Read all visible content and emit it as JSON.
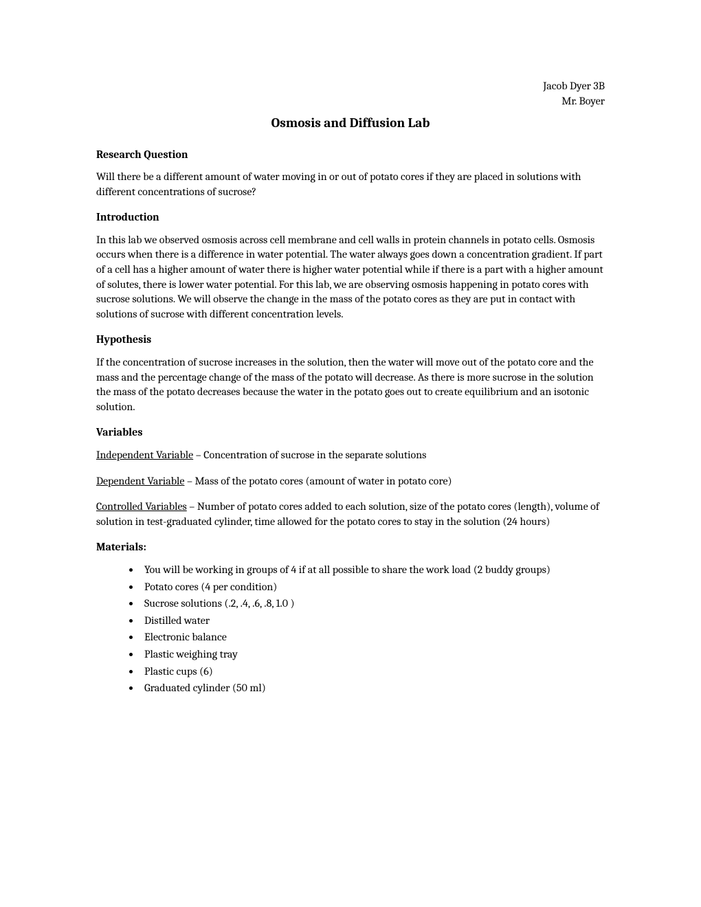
{
  "header": {
    "student": "Jacob Dyer 3B",
    "teacher": "Mr. Boyer"
  },
  "title": "Osmosis and Diffusion Lab",
  "sections": {
    "research_question": {
      "heading": "Research Question",
      "body": "Will there be a different amount of water moving in or out of potato cores if they are placed in solutions with different concentrations of sucrose?"
    },
    "introduction": {
      "heading": "Introduction",
      "body": "In this lab we observed osmosis across cell membrane and cell walls in protein channels in potato cells.  Osmosis occurs when there is a difference in water potential.  The water always goes down a concentration gradient.  If part of a cell has a higher amount of water there is higher water potential while if there is a part with a higher amount of solutes, there is lower water potential.  For this lab, we are observing osmosis happening in potato cores with sucrose solutions.  We will observe the change in the mass of the potato cores as they are put in contact with solutions of sucrose with different concentration levels."
    },
    "hypothesis": {
      "heading": "Hypothesis",
      "body": "If the concentration of sucrose increases in the solution, then the water will move out of the potato core and the mass and the percentage change of the mass of the potato will decrease.  As there is more sucrose in the solution the mass of the potato decreases because the water in the potato goes out to create equilibrium and an isotonic solution."
    },
    "variables": {
      "heading": "Variables",
      "independent": {
        "label": "Independent Variable",
        "text": " – Concentration of sucrose in the separate solutions"
      },
      "dependent": {
        "label": "Dependent Variable",
        "text": " – Mass of the potato cores (amount of water in potato core)"
      },
      "controlled": {
        "label": "Controlled Variables",
        "text": " – Number of potato cores added to each solution, size of the potato cores (length), volume of solution in test-graduated cylinder, time allowed for the potato cores to stay in the solution (24 hours)"
      }
    },
    "materials": {
      "heading": "Materials:",
      "items": [
        "You will be working in groups of 4 if at all possible to share the work load (2 buddy groups)",
        "Potato cores (4 per condition)",
        "Sucrose solutions (.2, .4, .6, .8, 1.0 )",
        "Distilled water",
        "Electronic balance",
        "Plastic weighing tray",
        "Plastic cups (6)",
        "Graduated cylinder (50 ml)"
      ]
    }
  }
}
